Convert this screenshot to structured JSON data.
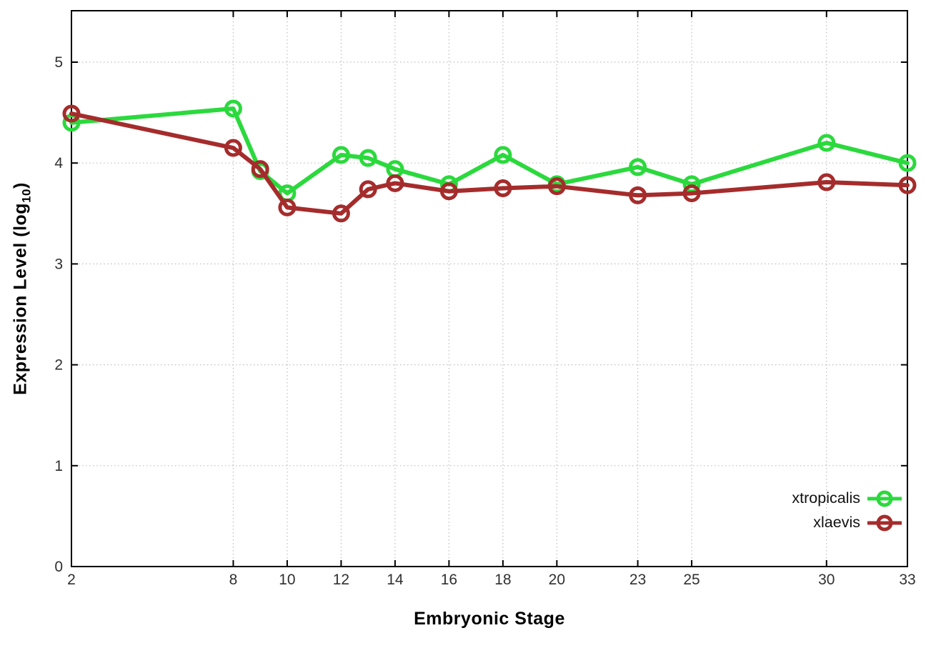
{
  "figure": {
    "background": "#ffffff",
    "border_color": "#000000",
    "grid_color": "#bdbdbd",
    "tick_label_color": "#303030",
    "axis_title_color": "#000000"
  },
  "chart_data": {
    "type": "line",
    "title": "",
    "xlabel": "Embryonic Stage",
    "ylabel_main": "Expression Level (log",
    "ylabel_sub": "10",
    "ylabel_close": ")",
    "xlim": [
      2,
      33
    ],
    "ylim": [
      0,
      5.51
    ],
    "x_ticks": [
      2,
      8,
      10,
      12,
      14,
      16,
      18,
      20,
      23,
      25,
      30,
      33
    ],
    "y_ticks": [
      0,
      1,
      2,
      3,
      4,
      5
    ],
    "grid": "dotted",
    "legend_position": "inside-bottom-right",
    "marker": "open-circle",
    "x": [
      2,
      8,
      9,
      10,
      12,
      13,
      14,
      16,
      18,
      20,
      23,
      25,
      30,
      33
    ],
    "series": [
      {
        "name": "xtropicalis",
        "color": "#2bd93d",
        "values": [
          4.4,
          4.54,
          3.92,
          3.7,
          4.08,
          4.05,
          3.94,
          3.79,
          4.08,
          3.79,
          3.96,
          3.79,
          4.2,
          4.0
        ]
      },
      {
        "name": "xlaevis",
        "color": "#a52c2c",
        "values": [
          4.49,
          4.15,
          3.94,
          3.56,
          3.5,
          3.74,
          3.8,
          3.72,
          3.75,
          3.77,
          3.68,
          3.7,
          3.81,
          3.78
        ]
      }
    ]
  }
}
